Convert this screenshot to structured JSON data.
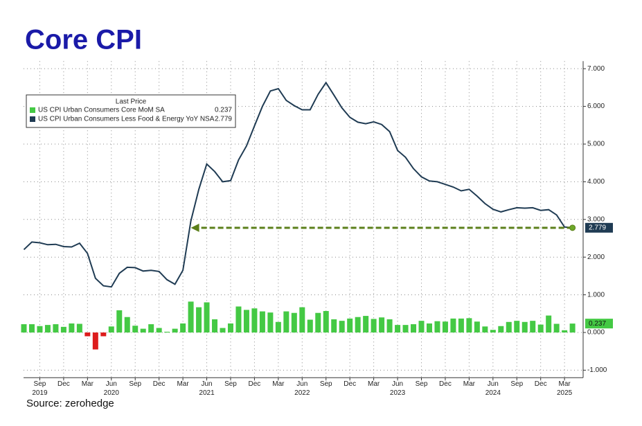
{
  "chart_data": {
    "type": "combo",
    "title": "Core CPI",
    "source": "Source: zerohedge",
    "legend_title": "Last Price",
    "legend": "upper left",
    "grid": true,
    "negative_color": "#dd1c1c",
    "categories": [
      "2019-07",
      "2019-08",
      "2019-09",
      "2019-10",
      "2019-11",
      "2019-12",
      "2020-01",
      "2020-02",
      "2020-03",
      "2020-04",
      "2020-05",
      "2020-06",
      "2020-07",
      "2020-08",
      "2020-09",
      "2020-10",
      "2020-11",
      "2020-12",
      "2021-01",
      "2021-02",
      "2021-03",
      "2021-04",
      "2021-05",
      "2021-06",
      "2021-07",
      "2021-08",
      "2021-09",
      "2021-10",
      "2021-11",
      "2021-12",
      "2022-01",
      "2022-02",
      "2022-03",
      "2022-04",
      "2022-05",
      "2022-06",
      "2022-07",
      "2022-08",
      "2022-09",
      "2022-10",
      "2022-11",
      "2022-12",
      "2023-01",
      "2023-02",
      "2023-03",
      "2023-04",
      "2023-05",
      "2023-06",
      "2023-07",
      "2023-08",
      "2023-09",
      "2023-10",
      "2023-11",
      "2023-12",
      "2024-01",
      "2024-02",
      "2024-03",
      "2024-04",
      "2024-05",
      "2024-06",
      "2024-07",
      "2024-08",
      "2024-09",
      "2024-10",
      "2024-11",
      "2024-12",
      "2025-01",
      "2025-02",
      "2025-03",
      "2025-04"
    ],
    "series": [
      {
        "name": "US CPI Urban Consumers Core MoM SA",
        "type": "bar",
        "color": "#44c944",
        "values": [
          0.22,
          0.22,
          0.17,
          0.2,
          0.22,
          0.15,
          0.24,
          0.23,
          -0.1,
          -0.45,
          -0.1,
          0.16,
          0.59,
          0.41,
          0.18,
          0.1,
          0.22,
          0.12,
          0.02,
          0.1,
          0.24,
          0.82,
          0.67,
          0.8,
          0.35,
          0.12,
          0.24,
          0.69,
          0.6,
          0.64,
          0.56,
          0.53,
          0.28,
          0.56,
          0.52,
          0.67,
          0.34,
          0.52,
          0.57,
          0.35,
          0.31,
          0.37,
          0.41,
          0.44,
          0.36,
          0.4,
          0.35,
          0.2,
          0.2,
          0.22,
          0.31,
          0.24,
          0.3,
          0.29,
          0.37,
          0.37,
          0.38,
          0.29,
          0.16,
          0.07,
          0.17,
          0.28,
          0.31,
          0.28,
          0.31,
          0.21,
          0.45,
          0.23,
          0.06,
          0.237
        ]
      },
      {
        "name": "US CPI Urban Consumers Less Food & Energy YoY NSA",
        "type": "line",
        "color": "#1f3b53",
        "values": [
          2.2,
          2.4,
          2.38,
          2.33,
          2.34,
          2.28,
          2.27,
          2.37,
          2.1,
          1.44,
          1.24,
          1.21,
          1.57,
          1.73,
          1.72,
          1.63,
          1.65,
          1.62,
          1.4,
          1.28,
          1.65,
          2.96,
          3.8,
          4.47,
          4.27,
          4.0,
          4.03,
          4.58,
          4.95,
          5.48,
          6.0,
          6.41,
          6.47,
          6.16,
          6.02,
          5.91,
          5.91,
          6.32,
          6.63,
          6.3,
          5.96,
          5.71,
          5.58,
          5.54,
          5.59,
          5.52,
          5.33,
          4.83,
          4.65,
          4.35,
          4.13,
          4.02,
          4.0,
          3.93,
          3.86,
          3.76,
          3.8,
          3.62,
          3.42,
          3.27,
          3.2,
          3.26,
          3.31,
          3.3,
          3.31,
          3.24,
          3.26,
          3.12,
          2.8,
          2.779
        ]
      }
    ],
    "arrow": {
      "color": "#5b7f1a",
      "to": "2021-04"
    },
    "ylim": [
      -1.2,
      7.2
    ],
    "yticks": [
      {
        "value": -1,
        "label": "-1.000"
      },
      {
        "value": 0,
        "label": "0.000"
      },
      {
        "value": 1,
        "label": "1.000"
      },
      {
        "value": 2,
        "label": "2.000"
      },
      {
        "value": 3,
        "label": "3.000"
      },
      {
        "value": 4,
        "label": "4.000"
      },
      {
        "value": 5,
        "label": "5.000"
      },
      {
        "value": 6,
        "label": "6.000"
      },
      {
        "value": 7,
        "label": "7.000"
      }
    ],
    "xticks": [
      {
        "value": "2019-09",
        "label": "Sep"
      },
      {
        "value": "2019-12",
        "label": "Dec"
      },
      {
        "value": "2020-03",
        "label": "Mar"
      },
      {
        "value": "2020-06",
        "label": "Jun"
      },
      {
        "value": "2020-09",
        "label": "Sep"
      },
      {
        "value": "2020-12",
        "label": "Dec"
      },
      {
        "value": "2021-03",
        "label": "Mar"
      },
      {
        "value": "2021-06",
        "label": "Jun"
      },
      {
        "value": "2021-09",
        "label": "Sep"
      },
      {
        "value": "2021-12",
        "label": "Dec"
      },
      {
        "value": "2022-03",
        "label": "Mar"
      },
      {
        "value": "2022-06",
        "label": "Jun"
      },
      {
        "value": "2022-09",
        "label": "Sep"
      },
      {
        "value": "2022-12",
        "label": "Dec"
      },
      {
        "value": "2023-03",
        "label": "Mar"
      },
      {
        "value": "2023-06",
        "label": "Jun"
      },
      {
        "value": "2023-09",
        "label": "Sep"
      },
      {
        "value": "2023-12",
        "label": "Dec"
      },
      {
        "value": "2024-03",
        "label": "Mar"
      },
      {
        "value": "2024-06",
        "label": "Jun"
      },
      {
        "value": "2024-09",
        "label": "Sep"
      },
      {
        "value": "2024-12",
        "label": "Dec"
      },
      {
        "value": "2025-03",
        "label": "Mar"
      }
    ],
    "year_ticks": [
      {
        "value": "2019-09",
        "label": "2019"
      },
      {
        "value": "2020-06",
        "label": "2020"
      },
      {
        "value": "2021-06",
        "label": "2021"
      },
      {
        "value": "2022-06",
        "label": "2022"
      },
      {
        "value": "2023-06",
        "label": "2023"
      },
      {
        "value": "2024-06",
        "label": "2024"
      },
      {
        "value": "2025-03",
        "label": "2025"
      }
    ]
  }
}
